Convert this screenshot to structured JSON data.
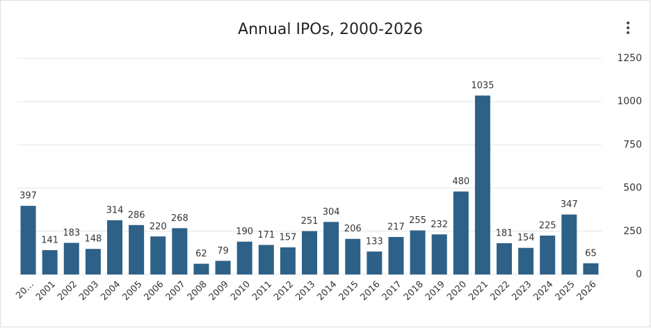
{
  "chart_data": {
    "type": "bar",
    "title": "Annual IPOs, 2000-2026",
    "categories": [
      "20…",
      "2001",
      "2002",
      "2003",
      "2004",
      "2005",
      "2006",
      "2007",
      "2008",
      "2009",
      "2010",
      "2011",
      "2012",
      "2013",
      "2014",
      "2015",
      "2016",
      "2017",
      "2018",
      "2019",
      "2020",
      "2021",
      "2022",
      "2023",
      "2024",
      "2025",
      "2026"
    ],
    "values": [
      397,
      141,
      183,
      148,
      314,
      286,
      220,
      268,
      62,
      79,
      190,
      171,
      157,
      251,
      304,
      206,
      133,
      217,
      255,
      232,
      480,
      1035,
      181,
      154,
      225,
      347,
      65
    ],
    "color": "#2e6188",
    "ylim": [
      0,
      1250
    ],
    "yticks": [
      0,
      250,
      500,
      750,
      1000,
      1250
    ],
    "grid": true
  }
}
